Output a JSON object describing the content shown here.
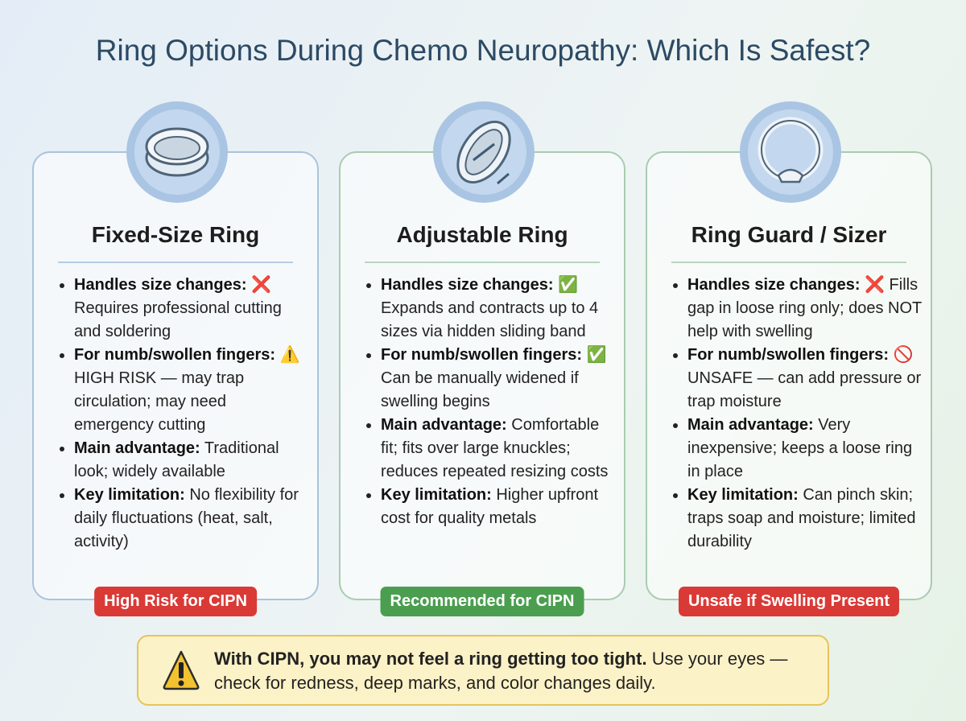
{
  "title": "Ring Options During Chemo Neuropathy: Which Is Safest?",
  "cards": [
    {
      "name": "Fixed-Size Ring",
      "items": [
        {
          "label": "Handles size changes:",
          "text": "❌ Requires professional cutting and soldering"
        },
        {
          "label": "For numb/swollen fingers:",
          "text": "⚠️ HIGH RISK — may trap circulation; may need emergency cutting"
        },
        {
          "label": "Main advantage:",
          "text": "Traditional look; widely available"
        },
        {
          "label": "Key limitation:",
          "text": "No flexibility for daily fluctuations (heat, salt, activity)"
        }
      ],
      "badge": "High Risk for CIPN"
    },
    {
      "name": "Adjustable Ring",
      "items": [
        {
          "label": "Handles size changes:",
          "text": "✅ Expands and contracts up to 4 sizes via hidden sliding band"
        },
        {
          "label": "For numb/swollen fingers:",
          "text": "✅ Can be manually widened if swelling begins"
        },
        {
          "label": "Main advantage:",
          "text": "Comfortable fit; fits over large knuckles; reduces repeated resizing costs"
        },
        {
          "label": "Key limitation:",
          "text": "Higher upfront cost for quality metals"
        }
      ],
      "badge": "Recommended for CIPN"
    },
    {
      "name": "Ring Guard / Sizer",
      "items": [
        {
          "label": "Handles size changes:",
          "text": "❌ Fills gap in loose ring only; does NOT help with swelling"
        },
        {
          "label": "For numb/swollen fingers:",
          "text": "🚫 UNSAFE — can add pressure or trap moisture"
        },
        {
          "label": "Main advantage:",
          "text": "Very inexpensive; keeps a loose ring in place"
        },
        {
          "label": "Key limitation:",
          "text": "Can pinch skin; traps soap and moisture; limited durability"
        }
      ],
      "badge": "Unsafe if Swelling Present"
    }
  ],
  "warning": {
    "bold": "With CIPN, you may not feel a ring getting too tight.",
    "text": "Use your eyes — check for redness, deep marks, and color changes daily."
  }
}
